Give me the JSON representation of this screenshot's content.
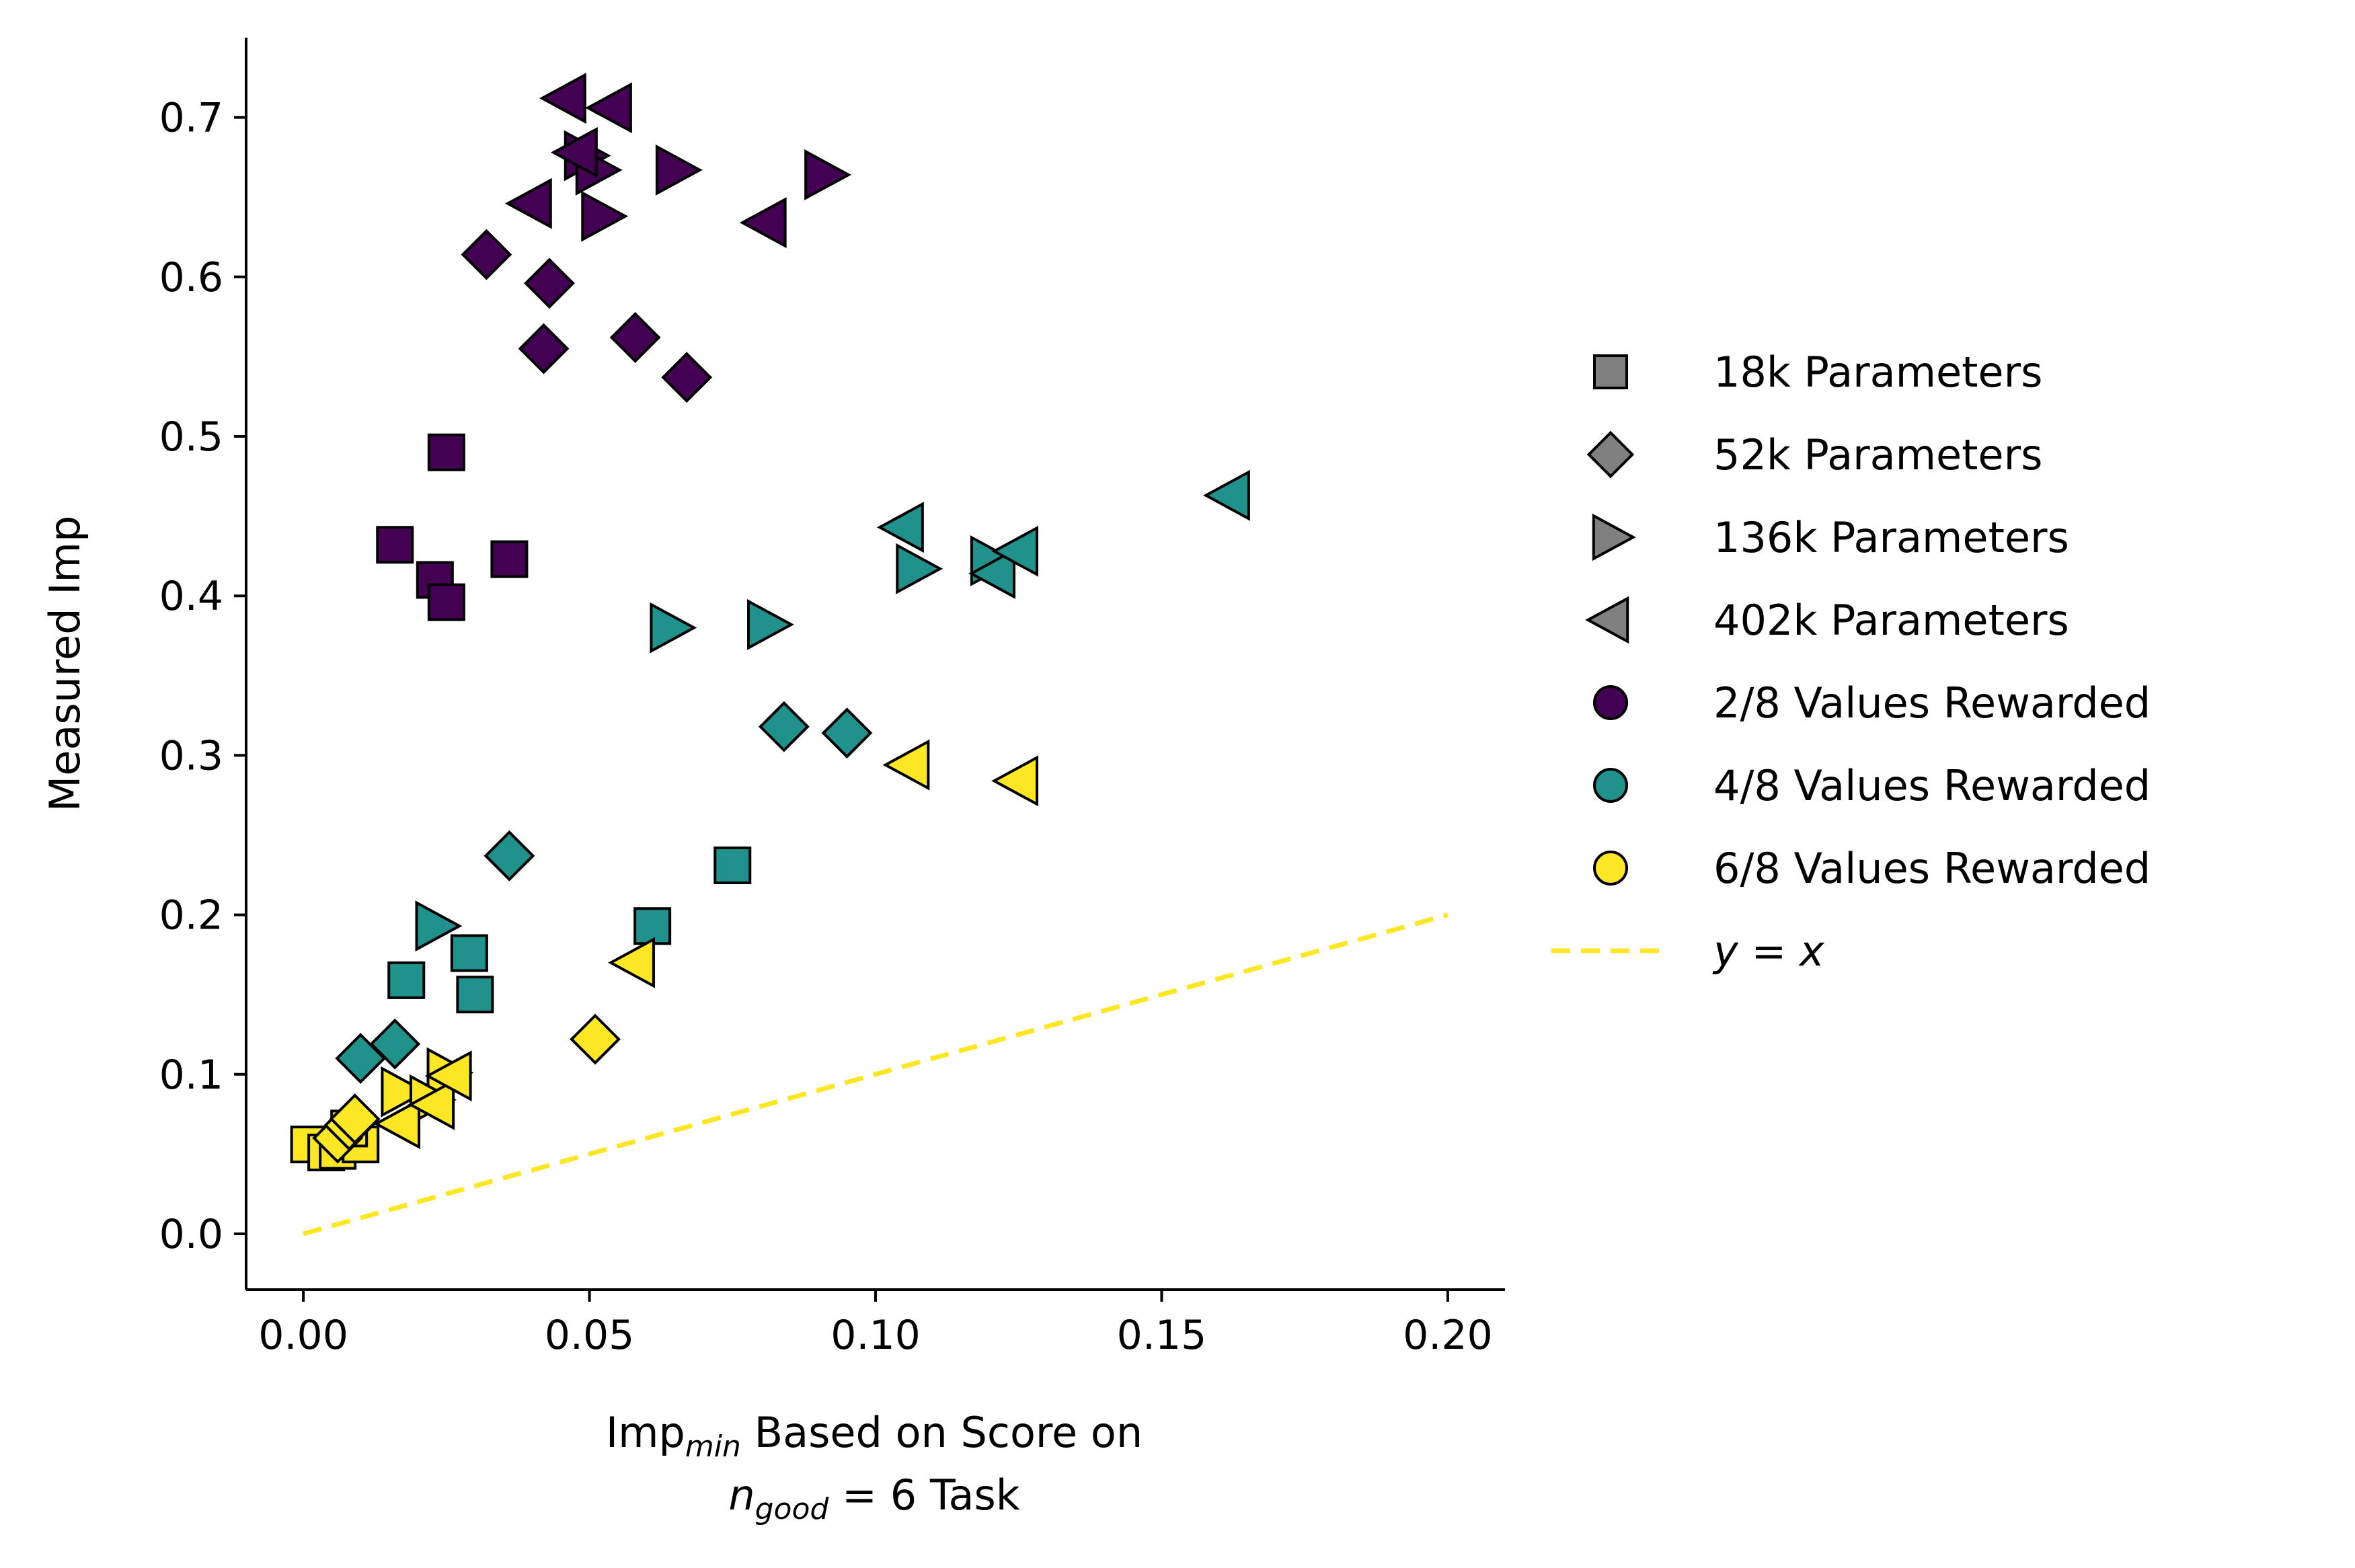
{
  "chart_data": {
    "type": "scatter",
    "title": "",
    "xlabel": {
      "main": "Imp",
      "sub": "min",
      "rest": " Based on Score on",
      "line2_var": "n",
      "line2_sub": "good",
      "line2_rest": " = 6 Task"
    },
    "ylabel": "Measured Imp",
    "xlim": [
      -0.01,
      0.21
    ],
    "ylim": [
      -0.035,
      0.75
    ],
    "xticks": [
      0.0,
      0.05,
      0.1,
      0.15,
      0.2
    ],
    "xtick_labels": [
      "0.00",
      "0.05",
      "0.10",
      "0.15",
      "0.20"
    ],
    "yticks": [
      0.0,
      0.1,
      0.2,
      0.3,
      0.4,
      0.5,
      0.6,
      0.7
    ],
    "ytick_labels": [
      "0.0",
      "0.1",
      "0.2",
      "0.3",
      "0.4",
      "0.5",
      "0.6",
      "0.7"
    ],
    "colors": {
      "2/8": "#440154",
      "4/8": "#21918c",
      "6/8": "#fde725",
      "legend_marker": "#808080",
      "reference_line": "#fde725"
    },
    "reference_line": {
      "label": "y = x",
      "x": [
        0.0,
        0.2
      ],
      "y": [
        0.0,
        0.2
      ],
      "style": "dashed"
    },
    "legend": {
      "placement": "right",
      "entries": [
        {
          "label": "18k Parameters",
          "marker": "square",
          "color": "#808080"
        },
        {
          "label": "52k Parameters",
          "marker": "diamond",
          "color": "#808080"
        },
        {
          "label": "136k Parameters",
          "marker": "triangle-right",
          "color": "#808080"
        },
        {
          "label": "402k Parameters",
          "marker": "triangle-left",
          "color": "#808080"
        },
        {
          "label": "2/8 Values Rewarded",
          "marker": "circle",
          "color": "#440154"
        },
        {
          "label": "4/8 Values Rewarded",
          "marker": "circle",
          "color": "#21918c"
        },
        {
          "label": "6/8 Values Rewarded",
          "marker": "circle",
          "color": "#fde725"
        },
        {
          "label": "y = x",
          "marker": "dashed-line",
          "color": "#fde725"
        }
      ]
    },
    "series": [
      {
        "name": "18k / 2/8",
        "marker": "square",
        "group": "2/8",
        "points": [
          [
            0.016,
            0.432
          ],
          [
            0.023,
            0.41
          ],
          [
            0.025,
            0.49
          ],
          [
            0.025,
            0.396
          ],
          [
            0.036,
            0.423
          ]
        ]
      },
      {
        "name": "52k / 2/8",
        "marker": "diamond",
        "group": "2/8",
        "points": [
          [
            0.032,
            0.614
          ],
          [
            0.043,
            0.596
          ],
          [
            0.042,
            0.555
          ],
          [
            0.058,
            0.562
          ],
          [
            0.067,
            0.537
          ]
        ]
      },
      {
        "name": "136k / 2/8",
        "marker": "triangle-right",
        "group": "2/8",
        "points": [
          [
            0.049,
            0.676
          ],
          [
            0.051,
            0.667
          ],
          [
            0.052,
            0.638
          ],
          [
            0.065,
            0.667
          ],
          [
            0.091,
            0.664
          ]
        ]
      },
      {
        "name": "402k / 2/8",
        "marker": "triangle-left",
        "group": "2/8",
        "points": [
          [
            0.046,
            0.712
          ],
          [
            0.054,
            0.706
          ],
          [
            0.048,
            0.678
          ],
          [
            0.04,
            0.646
          ],
          [
            0.081,
            0.634
          ]
        ]
      },
      {
        "name": "18k / 4/8",
        "marker": "square",
        "group": "4/8",
        "points": [
          [
            0.018,
            0.159
          ],
          [
            0.029,
            0.176
          ],
          [
            0.03,
            0.15
          ],
          [
            0.061,
            0.193
          ],
          [
            0.075,
            0.231
          ]
        ]
      },
      {
        "name": "52k / 4/8",
        "marker": "diamond",
        "group": "4/8",
        "points": [
          [
            0.01,
            0.11
          ],
          [
            0.016,
            0.119
          ],
          [
            0.036,
            0.237
          ],
          [
            0.084,
            0.318
          ],
          [
            0.095,
            0.314
          ]
        ]
      },
      {
        "name": "136k / 4/8",
        "marker": "triangle-right",
        "group": "4/8",
        "points": [
          [
            0.023,
            0.193
          ],
          [
            0.064,
            0.38
          ],
          [
            0.081,
            0.382
          ],
          [
            0.107,
            0.417
          ],
          [
            0.12,
            0.422
          ]
        ]
      },
      {
        "name": "402k / 4/8",
        "marker": "triangle-left",
        "group": "4/8",
        "points": [
          [
            0.105,
            0.443
          ],
          [
            0.121,
            0.414
          ],
          [
            0.125,
            0.428
          ],
          [
            0.162,
            0.463
          ]
        ]
      },
      {
        "name": "18k / 6/8",
        "marker": "square",
        "group": "6/8",
        "points": [
          [
            0.001,
            0.056
          ],
          [
            0.004,
            0.051
          ],
          [
            0.006,
            0.052
          ],
          [
            0.01,
            0.056
          ],
          [
            0.008,
            0.066
          ]
        ]
      },
      {
        "name": "52k / 6/8",
        "marker": "diamond",
        "group": "6/8",
        "points": [
          [
            0.006,
            0.06
          ],
          [
            0.008,
            0.068
          ],
          [
            0.009,
            0.072
          ],
          [
            0.051,
            0.122
          ]
        ]
      },
      {
        "name": "136k / 6/8",
        "marker": "triangle-right",
        "group": "6/8",
        "points": [
          [
            0.017,
            0.089
          ],
          [
            0.025,
            0.101
          ],
          [
            0.022,
            0.084
          ]
        ]
      },
      {
        "name": "402k / 6/8",
        "marker": "triangle-left",
        "group": "6/8",
        "points": [
          [
            0.017,
            0.069
          ],
          [
            0.023,
            0.081
          ],
          [
            0.026,
            0.099
          ],
          [
            0.058,
            0.17
          ],
          [
            0.106,
            0.294
          ],
          [
            0.125,
            0.284
          ]
        ]
      }
    ]
  }
}
